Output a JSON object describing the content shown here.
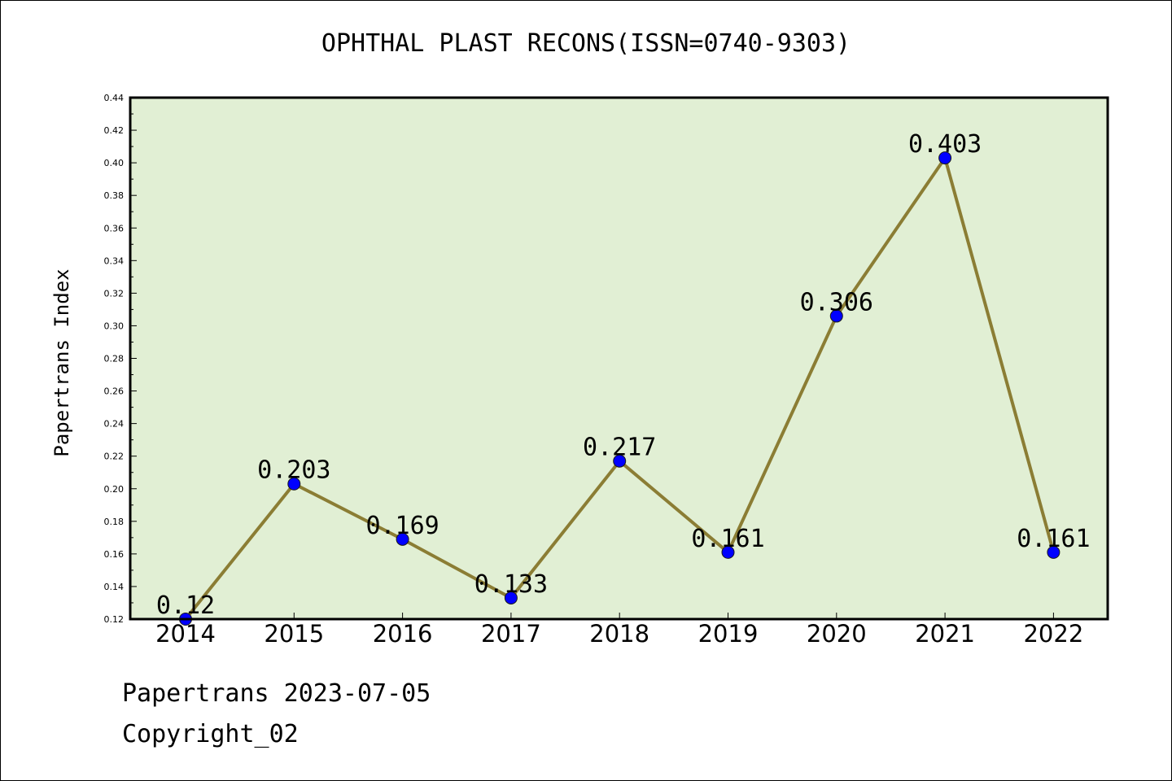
{
  "chart_data": {
    "type": "line",
    "title": "OPHTHAL PLAST RECONS(ISSN=0740-9303)",
    "ylabel": "Papertrans Index",
    "xlabel": "",
    "categories": [
      "2014",
      "2015",
      "2016",
      "2017",
      "2018",
      "2019",
      "2020",
      "2021",
      "2022"
    ],
    "values": [
      0.12,
      0.203,
      0.169,
      0.133,
      0.217,
      0.161,
      0.306,
      0.403,
      0.161
    ],
    "data_labels": [
      "0.12",
      "0.203",
      "0.169",
      "0.133",
      "0.217",
      "0.161",
      "0.306",
      "0.403",
      "0.161"
    ],
    "ylim": [
      0.12,
      0.44
    ],
    "y_ticks": [
      "0.12",
      "0.14",
      "0.16",
      "0.18",
      "0.20",
      "0.22",
      "0.24",
      "0.26",
      "0.28",
      "0.30",
      "0.32",
      "0.34",
      "0.36",
      "0.38",
      "0.40",
      "0.42",
      "0.44"
    ],
    "plot_background": "#e1efd4",
    "line_color": "#8b7d34",
    "marker_color": "#0000ff",
    "grid": false,
    "legend": "none"
  },
  "footer": {
    "source": "Papertrans 2023-07-05",
    "copyright": "Copyright_02"
  }
}
